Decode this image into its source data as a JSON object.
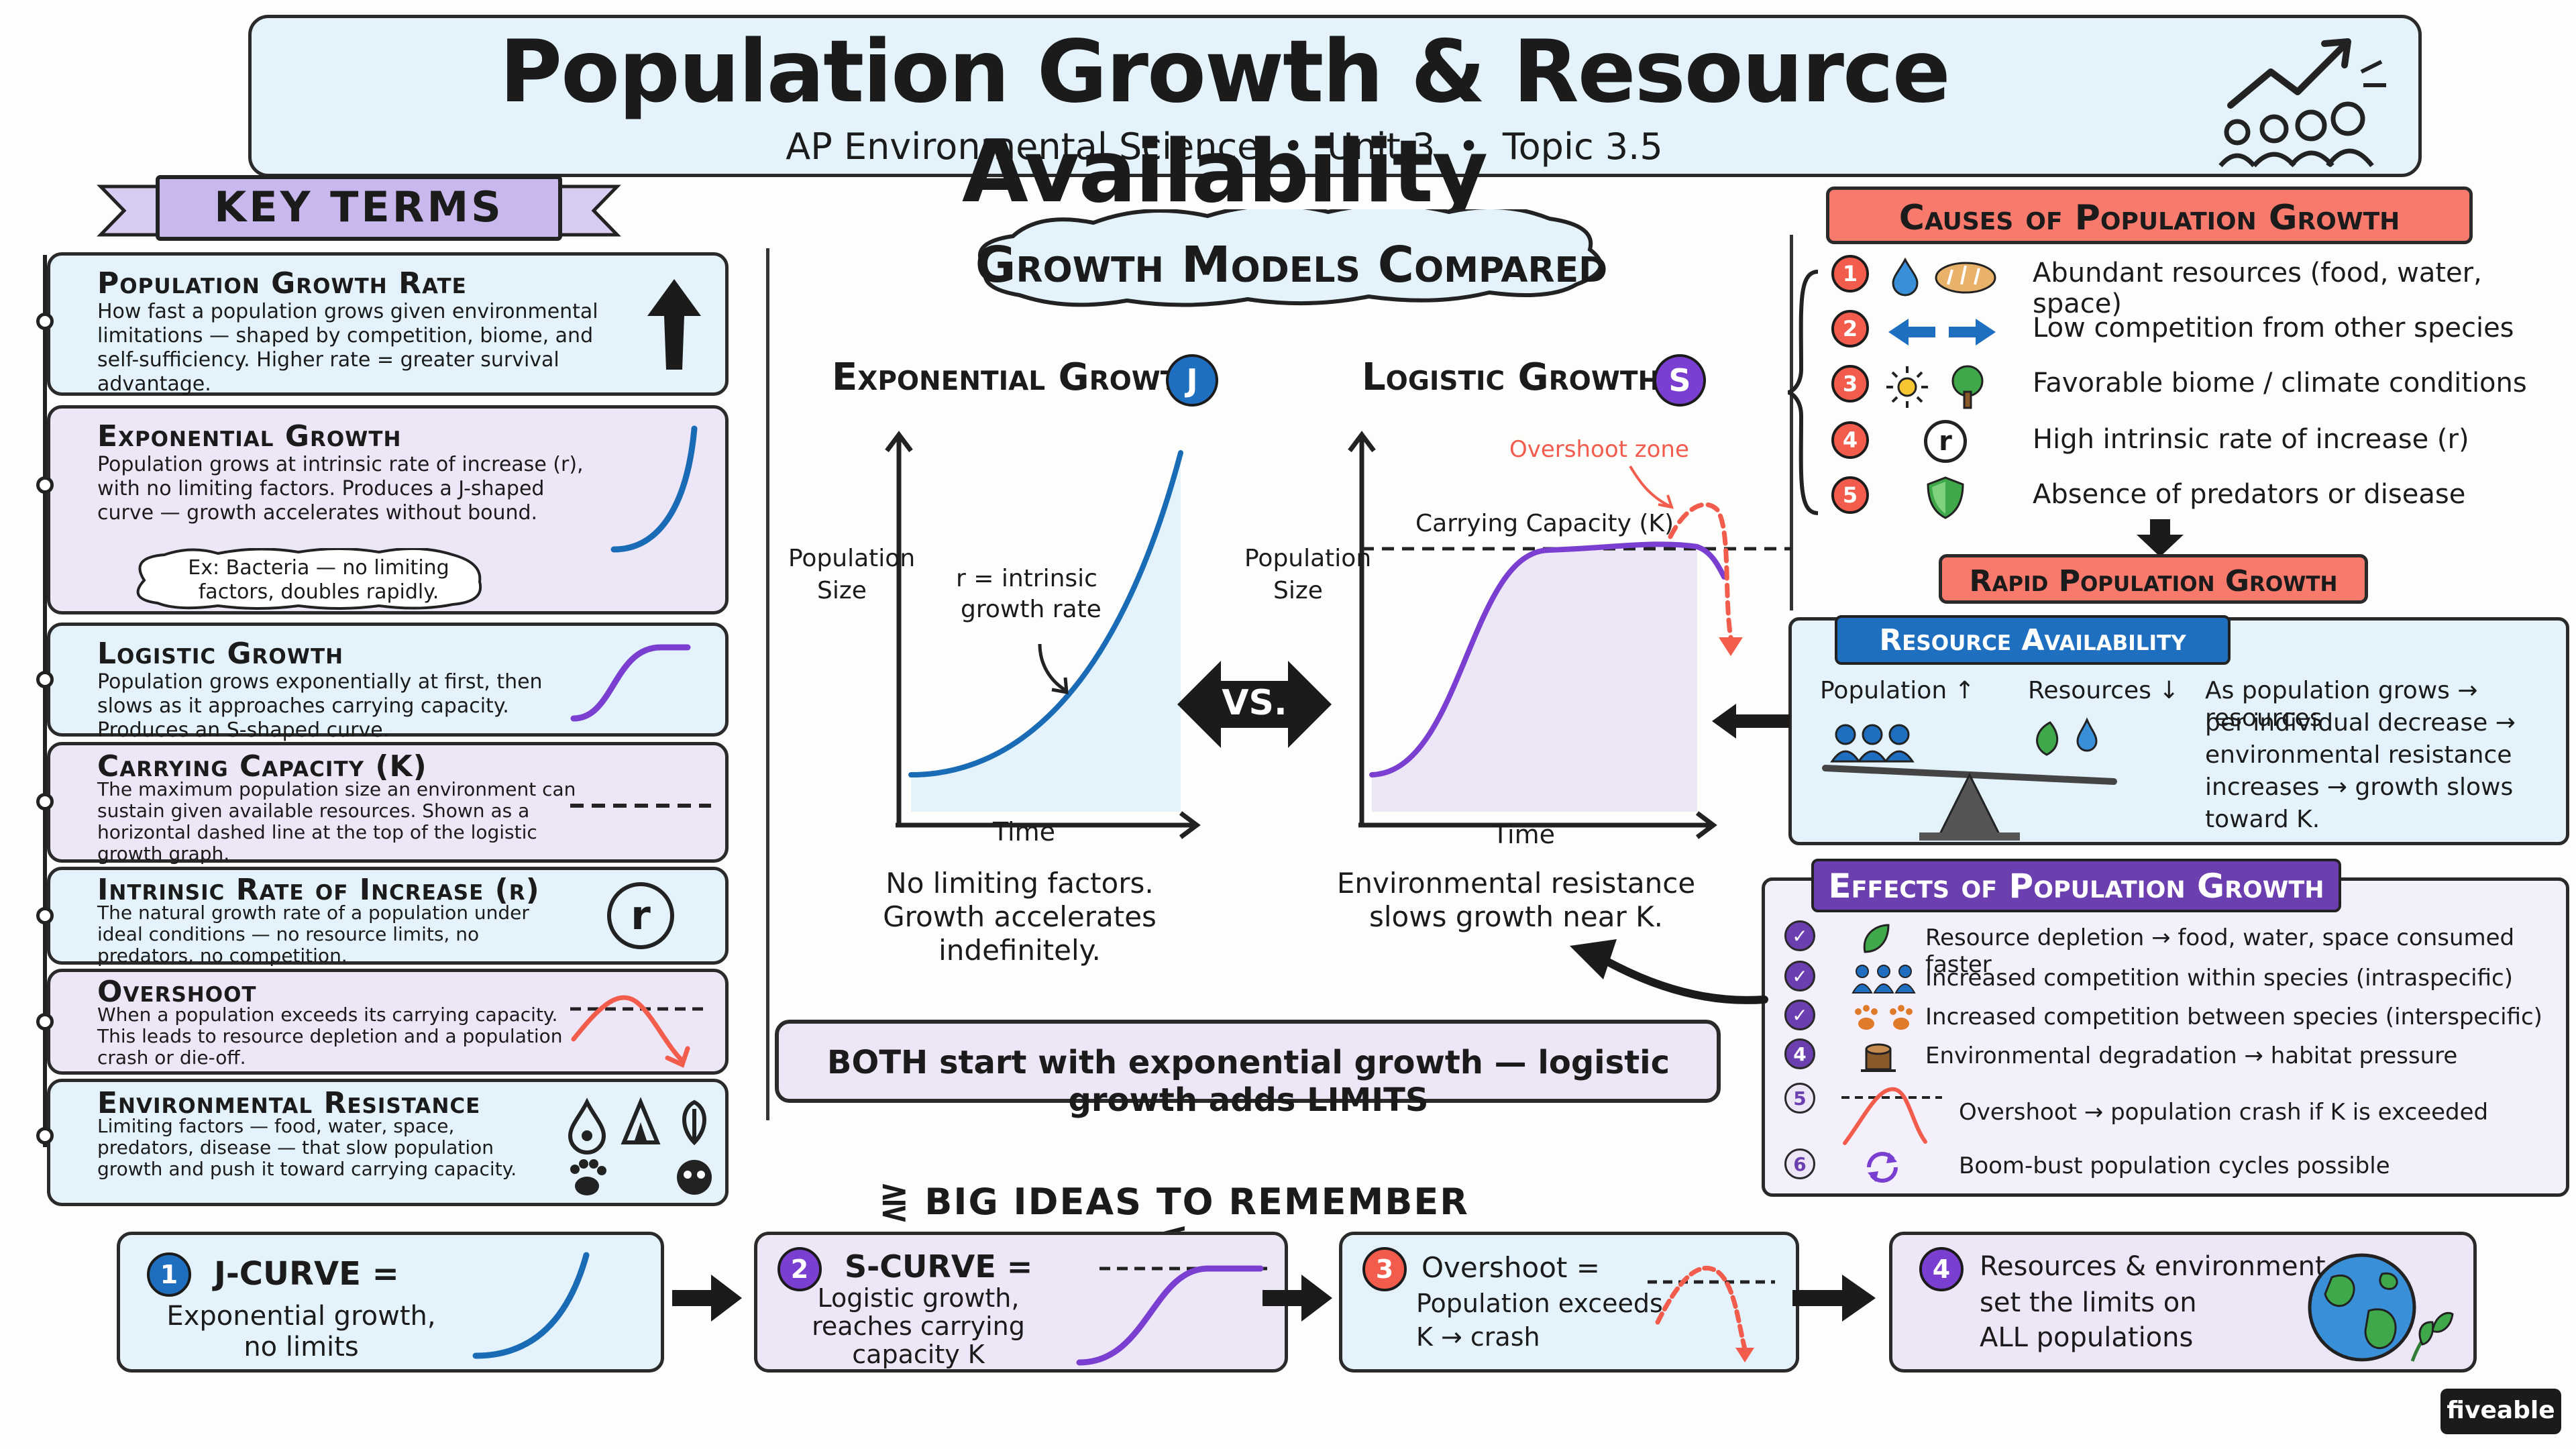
{
  "header": {
    "title": "Population Growth & Resource Availability",
    "subtitle": "AP Environmental Science  •  Unit 3  •  Topic 3.5"
  },
  "key_terms": {
    "heading": "KEY TERMS",
    "items": [
      {
        "title": "Population Growth Rate",
        "body": "How fast a population grows given environmental limitations — shaped by competition, biome, and self-sufficiency. Higher rate = greater survival advantage."
      },
      {
        "title": "Exponential Growth",
        "body": "Population grows at intrinsic rate of increase (r), with no limiting factors. Produces a J-shaped curve — growth accelerates without bound.",
        "example": "Ex: Bacteria — no limiting factors, doubles rapidly."
      },
      {
        "title": "Logistic Growth",
        "body": "Population grows exponentially at first, then slows as it approaches carrying capacity. Produces an S-shaped curve."
      },
      {
        "title": "Carrying Capacity (K)",
        "body": "The maximum population size an environment can sustain given available resources. Shown as a horizontal dashed line at the top of the logistic growth graph."
      },
      {
        "title": "Intrinsic Rate of Increase (r)",
        "body": "The natural growth rate of a population under ideal conditions — no resource limits, no predators, no competition.",
        "icon_letter": "r"
      },
      {
        "title": "Overshoot",
        "body": "When a population exceeds its carrying capacity. This leads to resource depletion and a population crash or die-off."
      },
      {
        "title": "Environmental Resistance",
        "body": "Limiting factors — food, water, space, predators, disease — that slow population growth and push it toward carrying capacity."
      }
    ]
  },
  "growth_models": {
    "heading": "Growth Models Compared",
    "exponential": {
      "title": "Exponential Growth",
      "badge": "J",
      "ylabel_1": "Population",
      "ylabel_2": "Size",
      "xlabel": "Time",
      "annotation_1": "r = intrinsic",
      "annotation_2": "growth rate",
      "caption_1": "No limiting factors.",
      "caption_2": "Growth accelerates",
      "caption_3": "indefinitely."
    },
    "logistic": {
      "title": "Logistic Growth",
      "badge": "S",
      "ylabel_1": "Population",
      "ylabel_2": "Size",
      "xlabel": "Time",
      "overshoot_label": "Overshoot zone",
      "k_label": "Carrying Capacity (K)",
      "caption_1": "Environmental resistance",
      "caption_2": "slows growth near K."
    },
    "vs": "VS.",
    "banner": "BOTH start with exponential growth — logistic growth adds LIMITS"
  },
  "causes": {
    "heading": "Causes of Population Growth",
    "items": [
      {
        "num": "1",
        "text": "Abundant resources (food, water, space)"
      },
      {
        "num": "2",
        "text": "Low competition from other species"
      },
      {
        "num": "3",
        "text": "Favorable biome / climate conditions"
      },
      {
        "num": "4",
        "text": "High intrinsic rate of increase (r)",
        "icon_letter": "r"
      },
      {
        "num": "5",
        "text": "Absence of predators or disease"
      }
    ],
    "result": "Rapid Population Growth"
  },
  "resource_availability": {
    "heading": "Resource Availability",
    "population_label": "Population ↑",
    "resources_label": "Resources ↓",
    "text_1": "As population grows → resources",
    "text_2": "per individual decrease →",
    "text_3": "environmental resistance",
    "text_4": "increases → growth slows",
    "text_5": "toward K."
  },
  "effects": {
    "heading": "Effects of Population Growth",
    "items": [
      {
        "mark": "✓",
        "text": "Resource depletion → food, water, space consumed faster"
      },
      {
        "mark": "✓",
        "text": "Increased competition within species (intraspecific)"
      },
      {
        "mark": "✓",
        "text": "Increased competition between species (interspecific)"
      },
      {
        "mark": "4",
        "text": "Environmental degradation → habitat pressure"
      },
      {
        "mark": "5",
        "text": "Overshoot → population crash if K is exceeded"
      },
      {
        "mark": "6",
        "text": "Boom-bust  population cycles possible"
      }
    ]
  },
  "big_ideas": {
    "heading": "BIG IDEAS TO REMEMBER",
    "items": [
      {
        "num": "1",
        "title": "J-CURVE =",
        "line1": "Exponential growth,",
        "line2": "no limits"
      },
      {
        "num": "2",
        "title": "S-CURVE =",
        "line1": "Logistic growth,",
        "line2": "reaches carrying",
        "line3": "capacity K"
      },
      {
        "num": "3",
        "title": "Overshoot =",
        "line1": "Population exceeds",
        "line2": "K → crash"
      },
      {
        "num": "4",
        "title": "Resources & environment",
        "line1": "set the limits on",
        "line2": "ALL populations"
      }
    ]
  },
  "brand": "fiveable",
  "colors": {
    "blue_card": "#e4f3fb",
    "purple_card": "#ece6f6",
    "accent_red": "#f25c4c",
    "accent_purple": "#6b3fb0",
    "accent_blue": "#1f6fc0",
    "curve_blue": "#1a6bb5",
    "curve_purple": "#7a3fd0"
  }
}
